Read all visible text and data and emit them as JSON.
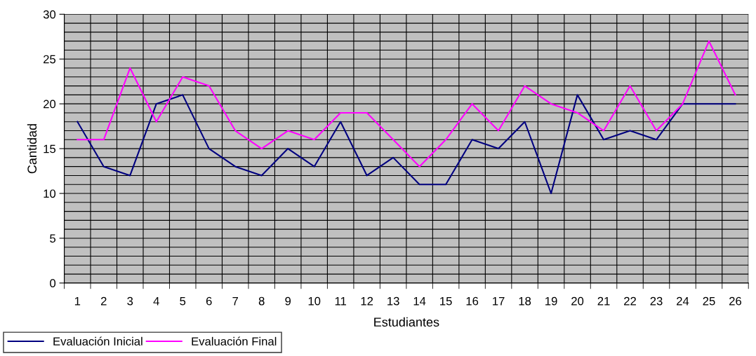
{
  "chart_data": {
    "type": "line",
    "xlabel": "Estudiantes",
    "ylabel": "Cantidad",
    "categories": [
      "1",
      "2",
      "3",
      "4",
      "5",
      "6",
      "7",
      "8",
      "9",
      "10",
      "11",
      "12",
      "13",
      "14",
      "15",
      "16",
      "17",
      "18",
      "19",
      "20",
      "21",
      "22",
      "23",
      "24",
      "25",
      "26"
    ],
    "series": [
      {
        "name": "Evaluación Inicial",
        "color": "#000080",
        "values": [
          18,
          13,
          12,
          20,
          21,
          15,
          13,
          12,
          15,
          13,
          18,
          12,
          14,
          11,
          11,
          16,
          15,
          18,
          10,
          21,
          16,
          17,
          16,
          20,
          20,
          20
        ]
      },
      {
        "name": "Evaluación Final",
        "color": "#ff00ff",
        "values": [
          16,
          16,
          24,
          18,
          23,
          22,
          17,
          15,
          17,
          16,
          19,
          19,
          16,
          13,
          16,
          20,
          17,
          22,
          20,
          19,
          17,
          22,
          17,
          20,
          27,
          21
        ]
      }
    ],
    "ylim": [
      0,
      30
    ],
    "yticks": [
      0,
      5,
      10,
      15,
      20,
      25,
      30
    ],
    "grid": true,
    "legend": "bottom left",
    "marker": "none",
    "line_style": "solid"
  }
}
